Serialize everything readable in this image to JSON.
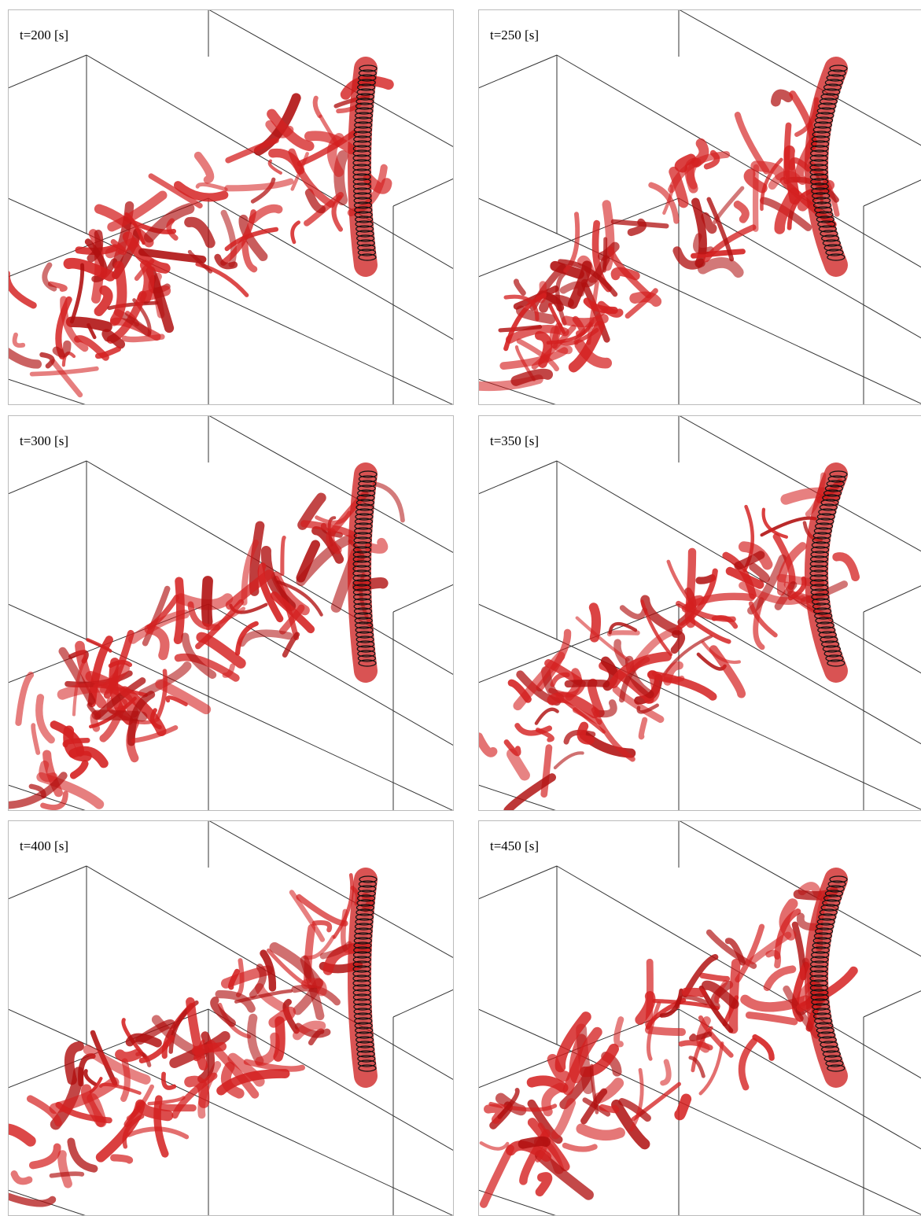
{
  "panels": [
    {
      "label": "t=200 [s]"
    },
    {
      "label": "t=250 [s]"
    },
    {
      "label": "t=300 [s]"
    },
    {
      "label": "t=350 [s]"
    },
    {
      "label": "t=400 [s]"
    },
    {
      "label": "t=450 [s]"
    }
  ]
}
